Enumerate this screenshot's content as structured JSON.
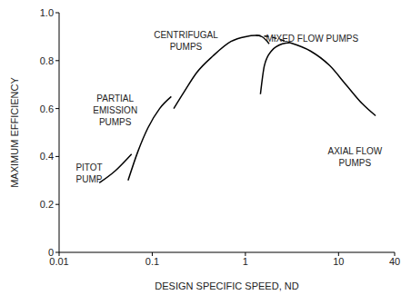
{
  "chart_data": {
    "type": "line",
    "x_label": "DESIGN SPECIFIC SPEED, ND",
    "y_label": "MAXIMUM EFFICIENCY",
    "log": "x",
    "xlim": [
      0.01,
      40
    ],
    "xticks": [
      0.01,
      0.1,
      1,
      10,
      40
    ],
    "ylim": [
      0,
      1
    ],
    "yticks": [
      0,
      0.2,
      0.4,
      0.6,
      0.8,
      {
        "value": 1,
        "label": "1.0"
      }
    ],
    "grid": false,
    "series": [
      {
        "color": "#000000",
        "line_style": "solid",
        "x": [
          0.027,
          0.04,
          0.06
        ],
        "values": [
          0.29,
          0.34,
          0.41
        ]
      },
      {
        "color": "#000000",
        "line_style": "solid",
        "x": [
          0.055,
          0.07,
          0.09,
          0.12,
          0.16
        ],
        "values": [
          0.3,
          0.42,
          0.52,
          0.6,
          0.65
        ]
      },
      {
        "color": "#000000",
        "line_style": "solid",
        "x": [
          0.17,
          0.22,
          0.3,
          0.45,
          0.7,
          1,
          1.3,
          1.5,
          1.8
        ],
        "values": [
          0.6,
          0.67,
          0.75,
          0.82,
          0.88,
          0.9,
          0.905,
          0.9,
          0.87
        ]
      },
      {
        "color": "#000000",
        "line_style": "dashed",
        "x": [
          1.3,
          1.8,
          2.5,
          3
        ],
        "values": [
          0.905,
          0.9,
          0.885,
          0.875
        ]
      },
      {
        "color": "#000000",
        "line_style": "solid",
        "x": [
          1.45,
          1.6,
          1.9,
          2.5,
          3
        ],
        "values": [
          0.66,
          0.78,
          0.84,
          0.87,
          0.875
        ]
      },
      {
        "color": "#000000",
        "line_style": "solid",
        "x": [
          3,
          5,
          8,
          12,
          18,
          25
        ],
        "values": [
          0.875,
          0.84,
          0.78,
          0.7,
          0.62,
          0.57
        ]
      }
    ],
    "annotations": [
      {
        "text": "PITOT\nPUMP",
        "x": 0.021,
        "y": 0.34
      },
      {
        "text": "PARTIAL\nEMISSION\nPUMPS",
        "x": 0.04,
        "y": 0.63
      },
      {
        "text": "CENTRIFUGAL\nPUMPS",
        "x": 0.23,
        "y": 0.895
      },
      {
        "text": "MIXED FLOW PUMPS",
        "x": 5.2,
        "y": 0.88
      },
      {
        "text": "AXIAL FLOW\nPUMPS",
        "x": 15,
        "y": 0.41
      }
    ]
  }
}
